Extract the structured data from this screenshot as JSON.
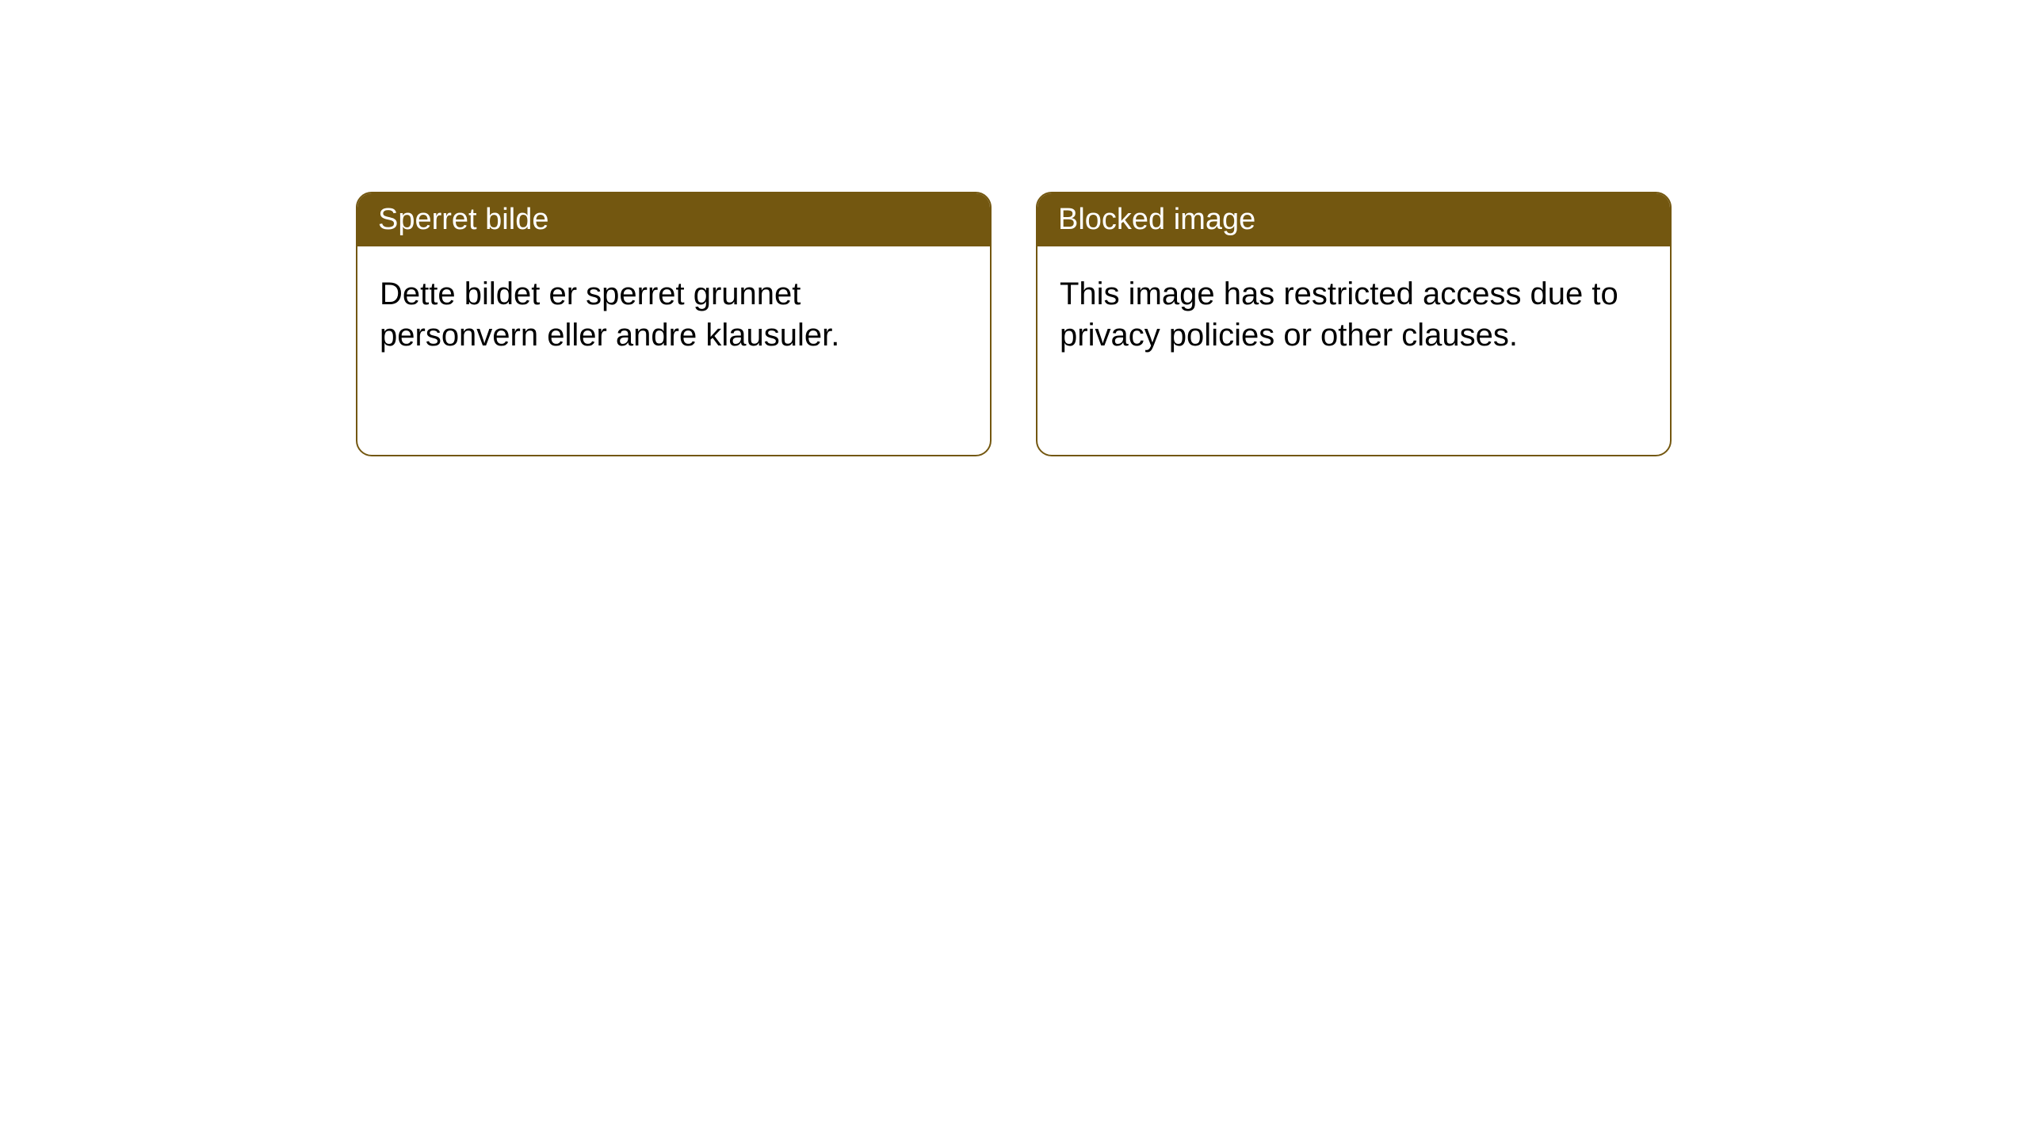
{
  "cards": [
    {
      "title": "Sperret bilde",
      "body": "Dette bildet er sperret grunnet personvern eller andre klausuler."
    },
    {
      "title": "Blocked image",
      "body": "This image has restricted access due to privacy policies or other clauses."
    }
  ],
  "styling": {
    "header_background": "#735710",
    "header_text_color": "#ffffff",
    "border_color": "#735710",
    "body_background": "#ffffff",
    "body_text_color": "#000000",
    "title_fontsize": 38,
    "body_fontsize": 40,
    "border_radius": 20
  }
}
